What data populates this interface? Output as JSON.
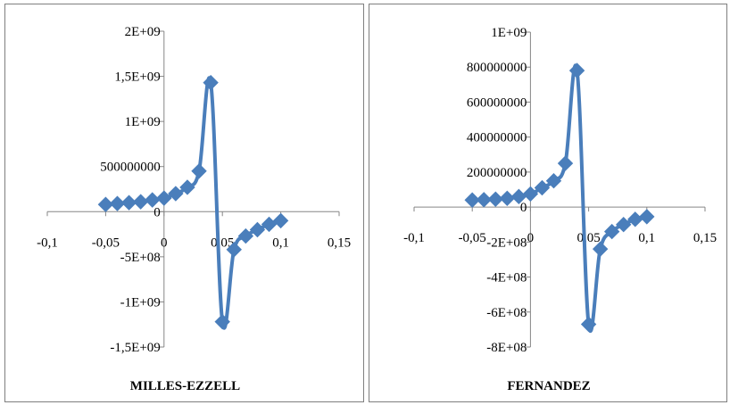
{
  "colors": {
    "series": "#4a7ebb",
    "axis": "#868686",
    "frame": "#7f7f7f"
  },
  "chart_data": [
    {
      "type": "line",
      "caption": "MILLES-EZZELL",
      "grid": false,
      "marker": "diamond",
      "xlim": [
        -0.1,
        0.15
      ],
      "ylim": [
        -1500000000,
        2000000000
      ],
      "x_ticks": [
        -0.1,
        -0.05,
        0,
        0.05,
        0.1,
        0.15
      ],
      "x_tick_labels": [
        "-0,1",
        "-0,05",
        "0",
        "0,05",
        "0,1",
        "0,15"
      ],
      "y_ticks": [
        -1500000000,
        -1000000000,
        -500000000,
        0,
        500000000,
        1000000000,
        1500000000,
        2000000000
      ],
      "y_tick_labels": [
        "-1,5E+09",
        "-1E+09",
        "-5E+08",
        "0",
        "500000000",
        "1E+09",
        "1,5E+09",
        "2E+09"
      ],
      "series": [
        {
          "x": [
            -0.05,
            -0.04,
            -0.03,
            -0.02,
            -0.01,
            0,
            0.01,
            0.02,
            0.03,
            0.04,
            0.05,
            0.06,
            0.07,
            0.08,
            0.09,
            0.1
          ],
          "y": [
            80000000,
            90000000,
            100000000,
            110000000,
            130000000,
            150000000,
            200000000,
            270000000,
            450000000,
            1430000000,
            -1220000000,
            -420000000,
            -270000000,
            -200000000,
            -140000000,
            -100000000
          ]
        }
      ]
    },
    {
      "type": "line",
      "caption": "FERNANDEZ",
      "grid": false,
      "marker": "diamond",
      "xlim": [
        -0.1,
        0.15
      ],
      "ylim": [
        -800000000,
        1000000000
      ],
      "x_ticks": [
        -0.1,
        -0.05,
        0,
        0.05,
        0.1,
        0.15
      ],
      "x_tick_labels": [
        "-0,1",
        "-0,05",
        "0",
        "0,05",
        "0,1",
        "0,15"
      ],
      "y_ticks": [
        -800000000,
        -600000000,
        -400000000,
        -200000000,
        0,
        200000000,
        400000000,
        600000000,
        800000000,
        1000000000
      ],
      "y_tick_labels": [
        "-8E+08",
        "-6E+08",
        "-4E+08",
        "-2E+08",
        "0",
        "200000000",
        "400000000",
        "600000000",
        "800000000",
        "1E+09"
      ],
      "series": [
        {
          "x": [
            -0.05,
            -0.04,
            -0.03,
            -0.02,
            -0.01,
            0,
            0.01,
            0.02,
            0.03,
            0.04,
            0.05,
            0.06,
            0.07,
            0.08,
            0.09,
            0.1
          ],
          "y": [
            40000000,
            42000000,
            45000000,
            50000000,
            60000000,
            75000000,
            110000000,
            150000000,
            250000000,
            780000000,
            -670000000,
            -240000000,
            -140000000,
            -100000000,
            -70000000,
            -55000000
          ]
        }
      ]
    }
  ]
}
